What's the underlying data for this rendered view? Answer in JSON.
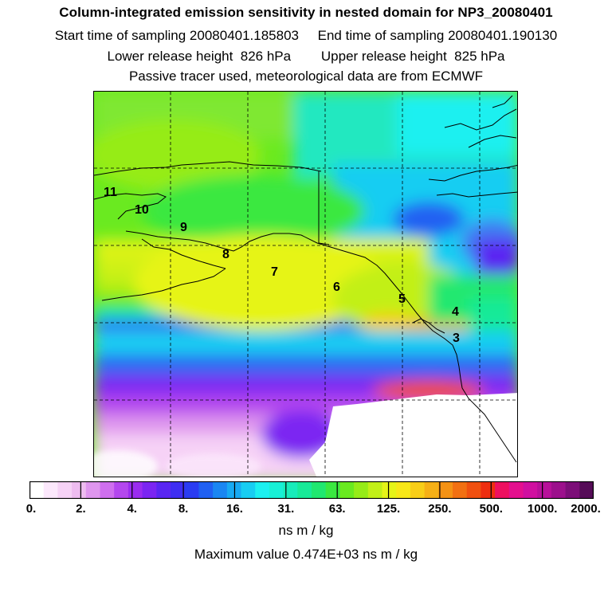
{
  "header": {
    "title": "Column-integrated emission sensitivity in nested domain for NP3_20080401",
    "line2": "Start time of sampling 20080401.185803     End time of sampling 20080401.190130",
    "line3": "Lower release height  826 hPa        Upper release height  825 hPa",
    "line4": "Passive tracer used, meteorological data are from ECMWF"
  },
  "map": {
    "point_labels": [
      "11",
      "10",
      "9",
      "8",
      "7",
      "6",
      "5",
      "4",
      "3"
    ]
  },
  "colorbar": {
    "tick_labels": [
      "0.",
      "2.",
      "4.",
      "8.",
      "16.",
      "31.",
      "63.",
      "125.",
      "250.",
      "500.",
      "1000.",
      "2000."
    ],
    "colors": [
      "#ffffff",
      "#fce8fc",
      "#f6d2f6",
      "#eebcf0",
      "#df96ee",
      "#cf6fee",
      "#b447ee",
      "#9a2cf0",
      "#7b25f2",
      "#5a26f2",
      "#3f2ef2",
      "#2a3cf2",
      "#2060f2",
      "#1a86f2",
      "#18aaf2",
      "#18cdf2",
      "#1cf0f0",
      "#18f0d6",
      "#18ecba",
      "#18ea98",
      "#20e870",
      "#3ae840",
      "#6aea20",
      "#96ec18",
      "#c2f018",
      "#e6f418",
      "#f8e818",
      "#f8ce18",
      "#f6b016",
      "#f49214",
      "#f27012",
      "#f05010",
      "#ee2e10",
      "#ee1060",
      "#e4108e",
      "#d010a0",
      "#b8109a",
      "#9c108c",
      "#7c0e78",
      "#560c58"
    ],
    "units": "ns m / kg",
    "max_value_text": "Maximum value  0.474E+03 ns m / kg"
  }
}
